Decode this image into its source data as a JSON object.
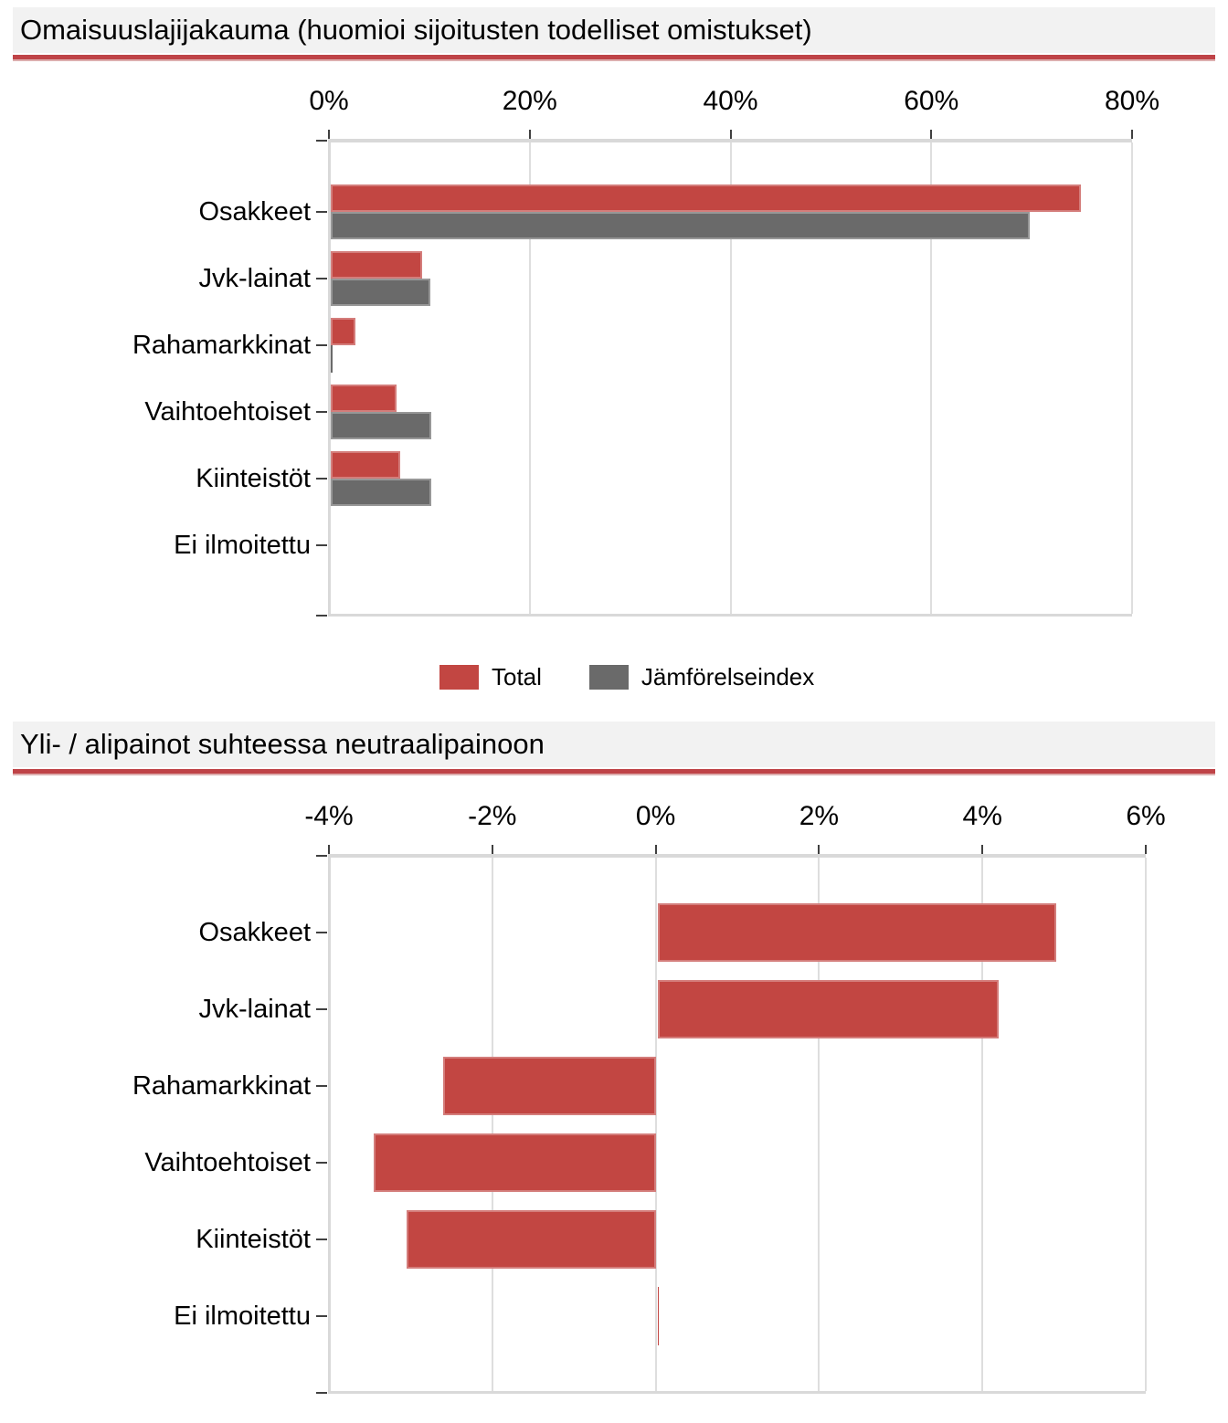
{
  "colors": {
    "total": "#c24642",
    "comparison_index": "#6a6a6a",
    "title_rule": "#bf4347",
    "title_band_bg": "#f2f2f2",
    "gridline": "#dedede",
    "axis_line": "#d9d9d9",
    "tick_mark": "#404040",
    "text": "#000000"
  },
  "chart_data": [
    {
      "type": "bar",
      "orientation": "horizontal",
      "title": "Omaisuuslajijakauma (huomioi sijoitusten todelliset omistukset)",
      "categories": [
        "Osakkeet",
        "Jvk-lainat",
        "Rahamarkkinat",
        "Vaihtoehtoiset",
        "Kiinteistöt",
        "Ei ilmoitettu"
      ],
      "series": [
        {
          "name": "Total",
          "color": "#c24642",
          "values": [
            74.9,
            9.3,
            2.6,
            6.7,
            7.1,
            0.0
          ]
        },
        {
          "name": "Jämförelseindex",
          "color": "#6a6a6a",
          "values": [
            69.8,
            10.1,
            0.1,
            10.2,
            10.2,
            0.0
          ]
        }
      ],
      "unit": "%",
      "xlim": [
        0,
        80
      ],
      "x_tick_values": [
        0,
        20,
        40,
        60,
        80
      ],
      "x_tick_labels": [
        "0%",
        "20%",
        "40%",
        "60%",
        "80%"
      ],
      "grid": true,
      "legend_position": "bottom"
    },
    {
      "type": "bar",
      "orientation": "horizontal",
      "title": "Yli- / alipainot suhteessa neutraalipainoon",
      "categories": [
        "Osakkeet",
        "Jvk-lainat",
        "Rahamarkkinat",
        "Vaihtoehtoiset",
        "Kiinteistöt",
        "Ei ilmoitettu"
      ],
      "series": [
        {
          "name": "Total",
          "color": "#c24642",
          "values": [
            4.9,
            4.2,
            -2.6,
            -3.45,
            -3.05,
            0.02
          ]
        }
      ],
      "unit": "%",
      "xlim": [
        -4,
        6
      ],
      "x_tick_values": [
        -4,
        -2,
        0,
        2,
        4,
        6
      ],
      "x_tick_labels": [
        "-4%",
        "-2%",
        "0%",
        "2%",
        "4%",
        "6%"
      ],
      "grid": true,
      "legend_position": "none"
    }
  ]
}
